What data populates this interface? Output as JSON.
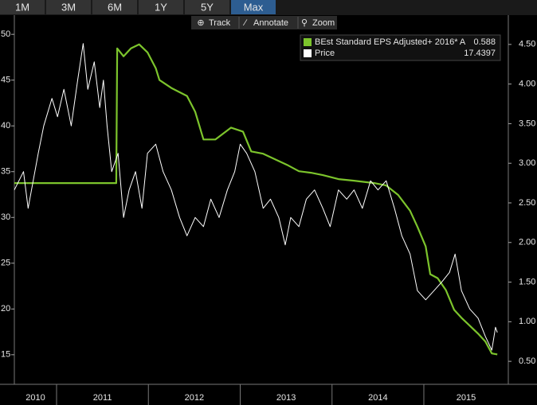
{
  "tabs": [
    "1M",
    "3M",
    "6M",
    "1Y",
    "5Y",
    "Max"
  ],
  "active_tab": 5,
  "toolbar": [
    "Track",
    "Annotate",
    "Zoom"
  ],
  "chart_data": {
    "type": "line",
    "xlim": [
      2010.54,
      2015.92
    ],
    "xticks": [
      2011,
      2012,
      2013,
      2014,
      2015
    ],
    "categories": [
      "2010",
      "2011",
      "2012",
      "2013",
      "2014",
      "2015"
    ],
    "ylim": [
      11.77,
      52.1
    ],
    "yticks": [
      15,
      20,
      25,
      30,
      35,
      40,
      45,
      50
    ],
    "y2lim": [
      0.21,
      4.87
    ],
    "y2ticks": [
      {
        "value": 0.5,
        "label": "0.50"
      },
      {
        "value": 1,
        "label": "1.00"
      },
      {
        "value": 1.5,
        "label": "1.50"
      },
      {
        "value": 2,
        "label": "2.00"
      },
      {
        "value": 2.5,
        "label": "2.50"
      },
      {
        "value": 3,
        "label": "3.00"
      },
      {
        "value": 3.5,
        "label": "3.50"
      },
      {
        "value": 4,
        "label": "4.00"
      },
      {
        "value": 4.5,
        "label": "4.50"
      }
    ],
    "legend": "upper right",
    "series": [
      {
        "name": "BEst Standard EPS Adjusted+ 2016* A",
        "color": "#7cc42c",
        "axis": "y2",
        "x": [
          2010.54,
          2011.65,
          2011.66,
          2011.73,
          2011.81,
          2011.9,
          2011.99,
          2012.08,
          2012.12,
          2012.25,
          2012.42,
          2012.51,
          2012.6,
          2012.73,
          2012.9,
          2013.03,
          2013.12,
          2013.25,
          2013.38,
          2013.51,
          2013.64,
          2013.77,
          2013.9,
          2014.07,
          2014.24,
          2014.46,
          2014.59,
          2014.72,
          2014.85,
          2014.93,
          2015.02,
          2015.07,
          2015.15,
          2015.24,
          2015.33,
          2015.41,
          2015.5,
          2015.59,
          2015.67,
          2015.74,
          2015.8
        ],
        "values": [
          2.75,
          2.75,
          4.45,
          4.35,
          4.45,
          4.5,
          4.4,
          4.2,
          4.05,
          3.95,
          3.85,
          3.65,
          3.3,
          3.3,
          3.45,
          3.4,
          3.15,
          3.12,
          3.05,
          2.98,
          2.9,
          2.88,
          2.85,
          2.8,
          2.78,
          2.75,
          2.72,
          2.6,
          2.4,
          2.2,
          1.95,
          1.6,
          1.55,
          1.4,
          1.15,
          1.05,
          0.95,
          0.85,
          0.75,
          0.6,
          0.588
        ]
      },
      {
        "name": "Price",
        "color": "#ffffff",
        "x": [
          2010.54,
          2010.64,
          2010.69,
          2010.8,
          2010.86,
          2010.95,
          2011.01,
          2011.08,
          2011.16,
          2011.23,
          2011.29,
          2011.34,
          2011.41,
          2011.47,
          2011.51,
          2011.55,
          2011.6,
          2011.67,
          2011.73,
          2011.79,
          2011.86,
          2011.93,
          2011.99,
          2012.08,
          2012.16,
          2012.25,
          2012.34,
          2012.42,
          2012.51,
          2012.6,
          2012.68,
          2012.77,
          2012.86,
          2012.94,
          2013.0,
          2013.07,
          2013.16,
          2013.25,
          2013.33,
          2013.42,
          2013.49,
          2013.55,
          2013.64,
          2013.72,
          2013.81,
          2013.9,
          2013.98,
          2014.07,
          2014.16,
          2014.24,
          2014.33,
          2014.42,
          2014.5,
          2014.59,
          2014.68,
          2014.76,
          2014.85,
          2014.93,
          2015.02,
          2015.11,
          2015.2,
          2015.28,
          2015.34,
          2015.41,
          2015.5,
          2015.59,
          2015.67,
          2015.74,
          2015.78,
          2015.8
        ],
        "values": [
          33,
          35,
          31,
          37,
          40,
          43,
          41,
          44,
          40,
          45,
          49,
          44,
          47,
          42,
          45,
          40,
          35,
          37,
          30,
          33,
          35,
          31,
          37,
          38,
          35,
          33,
          30,
          28,
          30,
          29,
          32,
          30,
          33,
          35,
          38,
          37,
          35,
          31,
          32,
          30,
          27,
          30,
          29,
          32,
          33,
          31,
          29,
          33,
          32,
          33,
          31,
          34,
          33,
          34,
          31,
          28,
          26,
          22,
          21,
          22,
          23,
          24,
          26,
          22,
          20,
          19,
          17,
          15.5,
          18,
          17.4397
        ]
      }
    ]
  }
}
